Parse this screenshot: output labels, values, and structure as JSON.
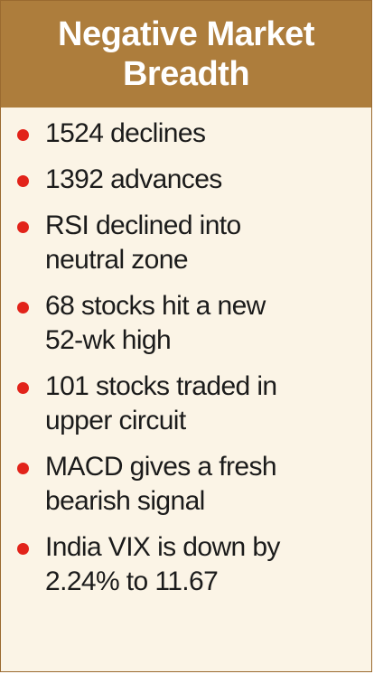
{
  "card": {
    "title": "Negative Market\nBreadth",
    "items": [
      {
        "text": "1524 declines"
      },
      {
        "text": "1392 advances"
      },
      {
        "text": "RSI declined into\nneutral zone"
      },
      {
        "text": "68 stocks hit a new\n 52-wk high"
      },
      {
        "text": "101 stocks traded in\nupper circuit"
      },
      {
        "text": "MACD gives a fresh\nbearish signal"
      },
      {
        "text": "India VIX is down by\n2.24% to 11.67"
      }
    ]
  },
  "colors": {
    "header_background": "#ad7d3c",
    "body_background": "#fbf4e6",
    "bullet": "#e2231a",
    "text": "#1b1b1b"
  }
}
